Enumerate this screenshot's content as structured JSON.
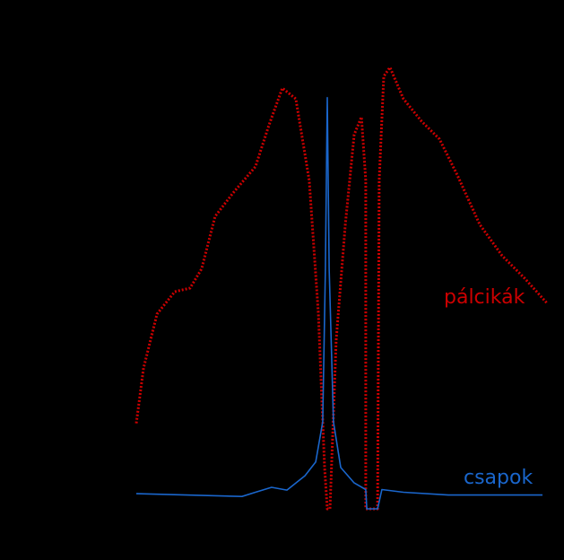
{
  "chart_data": {
    "type": "line",
    "xlim": [
      -72,
      82
    ],
    "ylim": [
      0,
      160
    ],
    "series": [
      {
        "name": "pálcikák",
        "color": "#cc0000",
        "dash": "dotted",
        "x": [
          -71,
          -68.3,
          -63.3,
          -56.7,
          -51,
          -46.7,
          -41.7,
          -35,
          -26.7,
          -21.7,
          -16.7,
          -11.7,
          -6.7,
          -3.3,
          -1,
          0,
          1,
          3.3,
          6.7,
          10,
          12.7,
          14.3,
          14.3,
          18.7,
          19.3,
          21,
          23.3,
          28.3,
          35,
          41.7,
          48.3,
          56.7,
          65,
          73.3,
          81.7
        ],
        "values": [
          31,
          51,
          70.6,
          78.7,
          80,
          87,
          106,
          114.5,
          124,
          139,
          152.5,
          148.6,
          119,
          70.6,
          15,
          0,
          0,
          61,
          103,
          135.6,
          142,
          119,
          0,
          0,
          119,
          156.7,
          160,
          148.6,
          140.5,
          134,
          121,
          103,
          91.7,
          83.6,
          74.5
        ]
      },
      {
        "name": "csapok",
        "color": "#1a66cc",
        "dash": "solid",
        "x": [
          -71,
          -31.7,
          -26.7,
          -20.7,
          -15,
          -8.3,
          -4.3,
          -1.7,
          -0.7,
          0,
          0.7,
          2.3,
          5,
          10,
          14.3,
          14.7,
          18.7,
          20.3,
          28.3,
          45,
          80
        ],
        "values": [
          5.5,
          4.5,
          6,
          7.8,
          6.8,
          12,
          17,
          31.5,
          87,
          149,
          87,
          31.5,
          15,
          9.4,
          7,
          0,
          0,
          7,
          6,
          5,
          5
        ]
      }
    ]
  }
}
